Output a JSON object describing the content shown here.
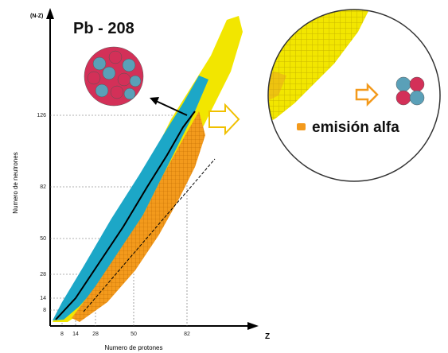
{
  "axis": {
    "y_top": "(N-Z)",
    "y_label": "Numero de neutrones",
    "x_label": "Numero de protones",
    "x_end": "Z",
    "y_ticks": [
      "126",
      "82",
      "50",
      "28",
      "14",
      "8"
    ],
    "x_ticks": [
      "8",
      "14",
      "28",
      "50",
      "82"
    ]
  },
  "nucleus": {
    "label": "Pb - 208"
  },
  "zoom": {
    "label": "emisión alfa"
  }
}
